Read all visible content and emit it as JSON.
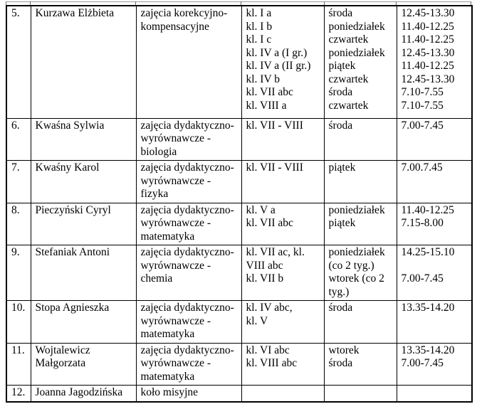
{
  "colors": {
    "border": "#000000",
    "text": "#000000",
    "background": "#ffffff"
  },
  "table": {
    "column_keys": [
      "no",
      "teacher",
      "activity",
      "classes",
      "day",
      "time"
    ],
    "rows": [
      {
        "no": "5.",
        "teacher": [
          "Kurzawa Elżbieta"
        ],
        "activity": [
          "zajęcia korekcyjno-",
          "kompensacyjne"
        ],
        "classes": [
          "kl. I a",
          "kl. I b",
          "kl. I c",
          "kl. IV a (I gr.)",
          "kl. IV a (II gr.)",
          "kl. IV b",
          "kl. VII abc",
          "kl. VIII a"
        ],
        "day": [
          "środa",
          "poniedziałek",
          "czwartek",
          "poniedziałek",
          "piątek",
          "czwartek",
          "środa",
          "czwartek"
        ],
        "time": [
          "12.45-13.30",
          "11.40-12.25",
          "11.40-12.25",
          "12.45-13.30",
          "11.40-12.25",
          "12.45-13.30",
          "7.10-7.55",
          "7.10-7.55"
        ]
      },
      {
        "no": "6.",
        "teacher": [
          "Kwaśna Sylwia"
        ],
        "activity": [
          "zajęcia dydaktyczno-",
          "wyrównawcze -",
          "biologia"
        ],
        "classes": [
          "kl. VII - VIII"
        ],
        "day": [
          "środa"
        ],
        "time": [
          "7.00-7.45"
        ]
      },
      {
        "no": "7.",
        "teacher": [
          "Kwaśny Karol"
        ],
        "activity": [
          "zajęcia dydaktyczno-",
          "wyrównawcze -",
          "fizyka"
        ],
        "classes": [
          "kl. VII - VIII"
        ],
        "day": [
          "piątek"
        ],
        "time": [
          "7.00.7.45"
        ]
      },
      {
        "no": "8.",
        "teacher": [
          "Pieczyński Cyryl"
        ],
        "activity": [
          "zajęcia dydaktyczno-",
          "wyrównawcze -",
          "matematyka"
        ],
        "classes": [
          "kl. V a",
          "kl. VII abc"
        ],
        "day": [
          "poniedziałek",
          "piątek"
        ],
        "time": [
          "11.40-12.25",
          "7.15-8.00"
        ]
      },
      {
        "no": "9.",
        "teacher": [
          "Stefaniak Antoni"
        ],
        "activity": [
          "zajęcia dydaktyczno-",
          "wyrównawcze -",
          "chemia"
        ],
        "classes": [
          "kl. VII ac, kl.",
          "VIII abc",
          "kl. VII b"
        ],
        "day": [
          "poniedziałek",
          "(co 2 tyg.)",
          "wtorek (co 2",
          "tyg.)"
        ],
        "time": [
          "14.25-15.10",
          "",
          "7.00-7.45"
        ]
      },
      {
        "no": "10.",
        "teacher": [
          "Stopa Agnieszka"
        ],
        "activity": [
          "zajęcia dydaktyczno-",
          "wyrównawcze -",
          "matematyka"
        ],
        "classes": [
          "kl. IV abc,",
          "kl. V"
        ],
        "day": [
          "środa"
        ],
        "time": [
          "13.35-14.20"
        ]
      },
      {
        "no": "11.",
        "teacher": [
          "Wojtalewicz",
          "Małgorzata"
        ],
        "activity": [
          "zajęcia dydaktyczno-",
          "wyrównawcze -",
          "matematyka"
        ],
        "classes": [
          "kl. VI abc",
          "kl. VIII abc"
        ],
        "day": [
          "wtorek",
          "środa"
        ],
        "time": [
          "13.35-14.20",
          "7.00-7.45"
        ]
      },
      {
        "no": "12.",
        "teacher": [
          "Joanna Jagodzińska"
        ],
        "activity": [
          "koło misyjne"
        ],
        "classes": [],
        "day": [],
        "time": []
      }
    ]
  }
}
